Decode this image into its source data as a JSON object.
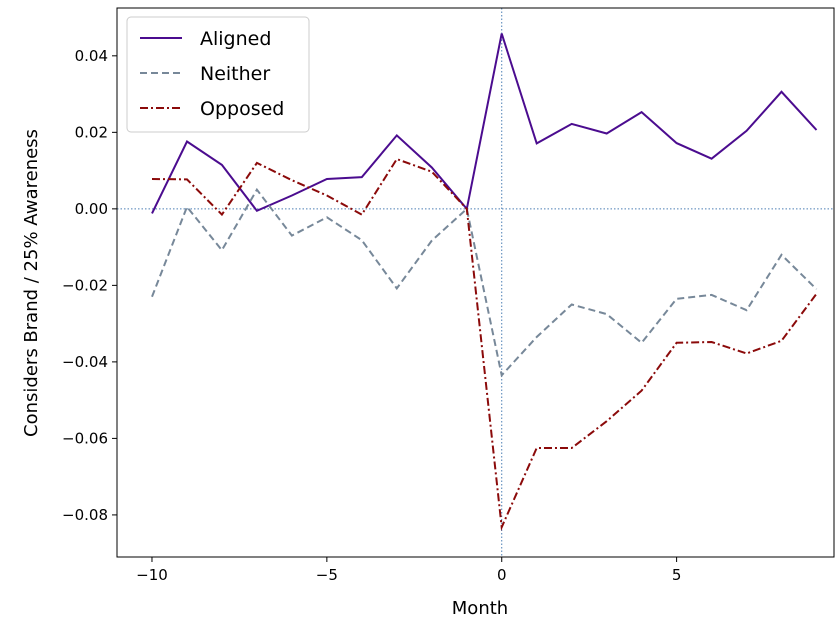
{
  "chart_data": {
    "type": "line",
    "title": "",
    "xlabel": "Month",
    "ylabel": "Considers Brand / 25% Awareness",
    "xlim": [
      -11,
      9.5
    ],
    "ylim": [
      -0.091,
      0.0525
    ],
    "xticks": [
      -10,
      -5,
      0,
      5
    ],
    "xtick_labels": [
      "−10",
      "−5",
      "0",
      "5"
    ],
    "yticks": [
      0.04,
      0.02,
      0.0,
      -0.02,
      -0.04,
      -0.06,
      -0.08
    ],
    "ytick_labels": [
      "0.04",
      "0.02",
      "0.00",
      "−0.02",
      "−0.04",
      "−0.06",
      "−0.08"
    ],
    "grid": false,
    "reference_lines": {
      "x": 0,
      "y": 0,
      "color": "#4c7fb5",
      "style": "dotted"
    },
    "legend_position": "top-left",
    "x": [
      -10,
      -9,
      -8,
      -7,
      -6,
      -5,
      -4,
      -3,
      -2,
      -1,
      0,
      1,
      2,
      3,
      4,
      5,
      6,
      7,
      8,
      9
    ],
    "series": [
      {
        "name": "Aligned",
        "color": "#4b0c8f",
        "style": "solid",
        "values": [
          -0.0012,
          0.0176,
          0.0115,
          -0.0005,
          0.0035,
          0.0078,
          0.0083,
          0.0192,
          0.0108,
          0.0,
          0.0458,
          0.0171,
          0.0222,
          0.0197,
          0.0253,
          0.0172,
          0.0131,
          0.0204,
          0.0306,
          0.0206
        ]
      },
      {
        "name": "Neither",
        "color": "#778899",
        "style": "dashed",
        "values": [
          -0.023,
          0.0005,
          -0.0108,
          0.005,
          -0.007,
          -0.0022,
          -0.0082,
          -0.0208,
          -0.0083,
          0.0,
          -0.0435,
          -0.0335,
          -0.025,
          -0.0275,
          -0.035,
          -0.0235,
          -0.0225,
          -0.0265,
          -0.012,
          -0.021
        ]
      },
      {
        "name": "Opposed",
        "color": "#8b0a0a",
        "style": "dashdot",
        "values": [
          0.0078,
          0.0077,
          -0.0015,
          0.012,
          0.0075,
          0.0035,
          -0.0015,
          0.013,
          0.0097,
          0.0,
          -0.0832,
          -0.0625,
          -0.0625,
          -0.0555,
          -0.0475,
          -0.035,
          -0.0348,
          -0.0378,
          -0.0345,
          -0.0222
        ]
      }
    ]
  }
}
